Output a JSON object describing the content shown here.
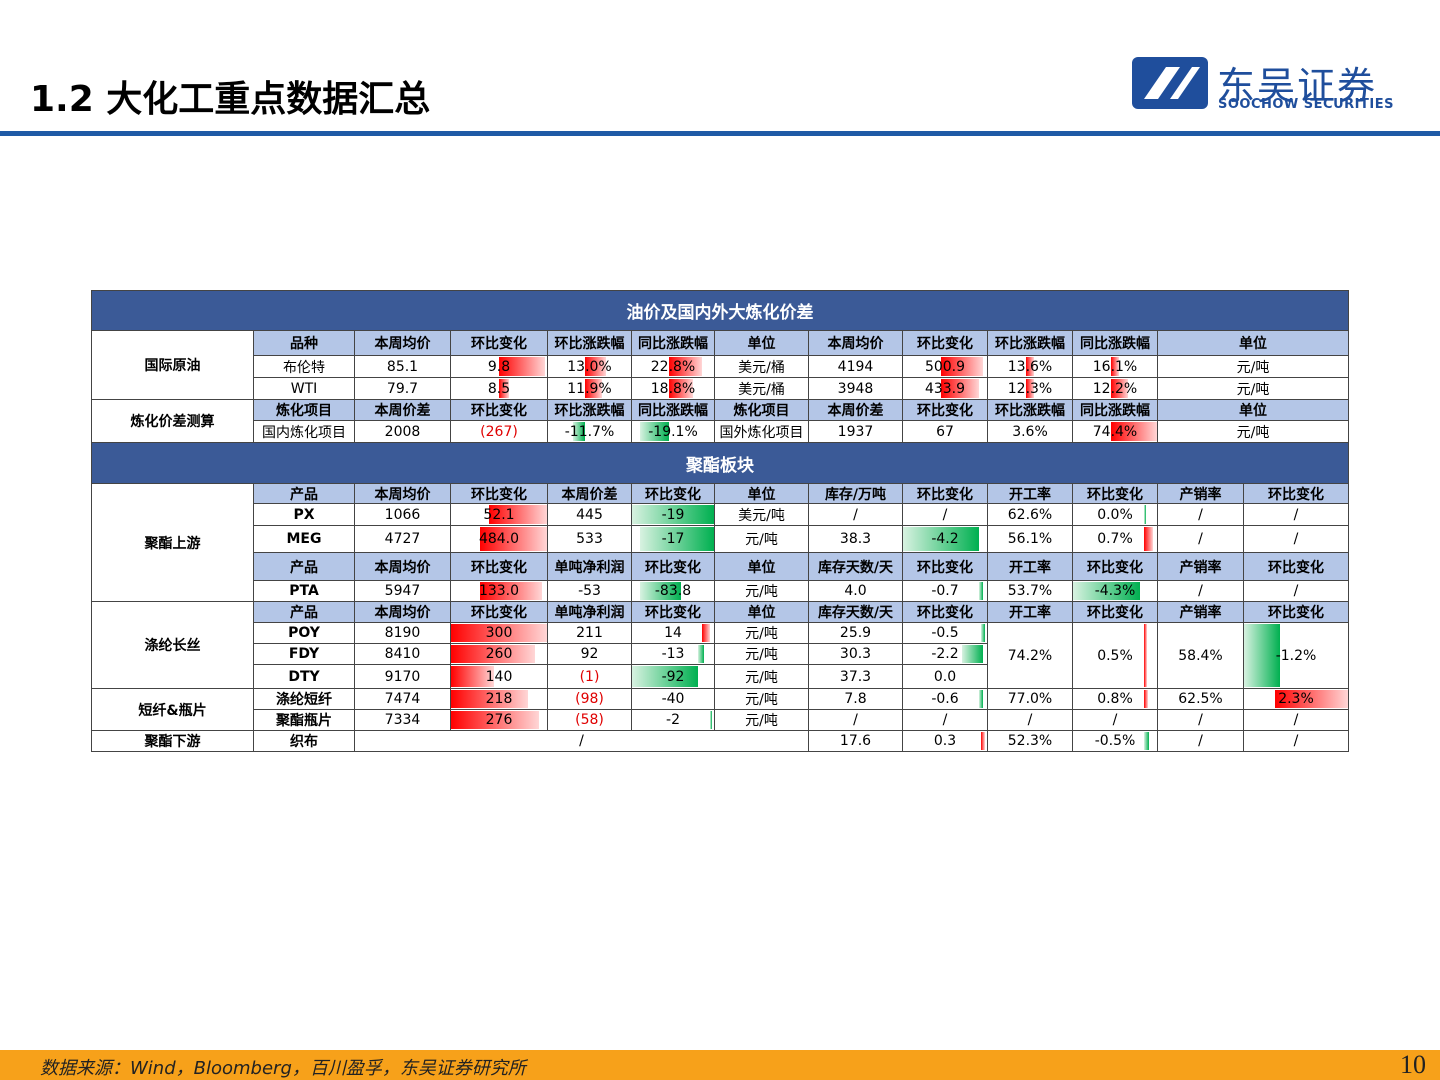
{
  "header": {
    "title": "1.2 大化工重点数据汇总",
    "logo_cn": "东吴证券",
    "logo_en": "SOOCHOW SECURITIES"
  },
  "table": {
    "section1": "油价及国内外大炼化价差",
    "crude": {
      "label": "国际原油",
      "header": [
        "品种",
        "本周均价",
        "环比变化",
        "环比涨跌幅",
        "同比涨跌幅",
        "单位",
        "本周均价",
        "环比变化",
        "环比涨跌幅",
        "同比涨跌幅",
        "单位"
      ],
      "rows": [
        [
          "布伦特",
          "85.1",
          "9.8",
          "13.0%",
          "22.8%",
          "美元/桶",
          "4194",
          "500.9",
          "13.6%",
          "16.1%",
          "元/吨"
        ],
        [
          "WTI",
          "79.7",
          "8.5",
          "11.9%",
          "18.8%",
          "美元/桶",
          "3948",
          "433.9",
          "12.3%",
          "12.2%",
          "元/吨"
        ]
      ]
    },
    "refining": {
      "label": "炼化价差测算",
      "header": [
        "炼化项目",
        "本周价差",
        "环比变化",
        "环比涨跌幅",
        "同比涨跌幅",
        "炼化项目",
        "本周价差",
        "环比变化",
        "环比涨跌幅",
        "同比涨跌幅",
        "单位"
      ],
      "rows": [
        [
          "国内炼化项目",
          "2008",
          "(267)",
          "-11.7%",
          "-19.1%",
          "国外炼化项目",
          "1937",
          "67",
          "3.6%",
          "74.4%",
          "元/吨"
        ]
      ]
    },
    "section2": "聚酯板块",
    "upstream": {
      "label": "聚酯上游",
      "header1": [
        "产品",
        "本周均价",
        "环比变化",
        "本周价差",
        "环比变化",
        "单位",
        "库存/万吨",
        "环比变化",
        "开工率",
        "环比变化",
        "产销率",
        "环比变化"
      ],
      "rows1": [
        [
          "PX",
          "1066",
          "52.1",
          "445",
          "-19",
          "美元/吨",
          "/",
          "/",
          "62.6%",
          "0.0%",
          "/",
          "/"
        ],
        [
          "MEG",
          "4727",
          "484.0",
          "533",
          "-17",
          "元/吨",
          "38.3",
          "-4.2",
          "56.1%",
          "0.7%",
          "/",
          "/"
        ]
      ],
      "header2": [
        "产品",
        "本周均价",
        "环比变化",
        "单吨净利润",
        "环比变化",
        "单位",
        "库存天数/天",
        "环比变化",
        "开工率",
        "环比变化",
        "产销率",
        "环比变化"
      ],
      "rows2": [
        [
          "PTA",
          "5947",
          "133.0",
          "-53",
          "-83.8",
          "元/吨",
          "4.0",
          "-0.7",
          "53.7%",
          "-4.3%",
          "/",
          "/"
        ]
      ]
    },
    "filament": {
      "label": "涤纶长丝",
      "header": [
        "产品",
        "本周均价",
        "环比变化",
        "单吨净利润",
        "环比变化",
        "单位",
        "库存天数/天",
        "环比变化",
        "开工率",
        "环比变化",
        "产销率",
        "环比变化"
      ],
      "rows": [
        [
          "POY",
          "8190",
          "300",
          "211",
          "14",
          "元/吨",
          "25.9",
          "-0.5"
        ],
        [
          "FDY",
          "8410",
          "260",
          "92",
          "-13",
          "元/吨",
          "30.3",
          "-2.2"
        ],
        [
          "DTY",
          "9170",
          "140",
          "(1)",
          "-92",
          "元/吨",
          "37.3",
          "0.0"
        ]
      ],
      "merged": [
        "74.2%",
        "0.5%",
        "58.4%",
        "-1.2%"
      ]
    },
    "staple": {
      "label": "短纤&瓶片",
      "rows": [
        [
          "涤纶短纤",
          "7474",
          "218",
          "(98)",
          "-40",
          "元/吨",
          "7.8",
          "-0.6",
          "77.0%",
          "0.8%",
          "62.5%",
          "2.3%"
        ],
        [
          "聚酯瓶片",
          "7334",
          "276",
          "(58)",
          "-2",
          "元/吨",
          "/",
          "/",
          "/",
          "/",
          "/",
          "/"
        ]
      ]
    },
    "downstream": {
      "label": "聚酯下游",
      "rows": [
        [
          "织布",
          "/",
          "17.6",
          "0.3",
          "52.3%",
          "-0.5%",
          "/",
          "/"
        ]
      ]
    }
  },
  "footer": {
    "source": "数据来源：Wind，Bloomberg，百川盈孚，东吴证券研究所",
    "page": "10"
  }
}
